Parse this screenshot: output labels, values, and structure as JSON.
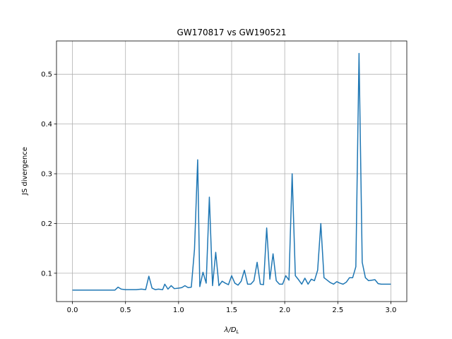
{
  "chart_data": {
    "type": "line",
    "title": "GW170817 vs GW190521",
    "xlabel_main": "λ",
    "xlabel_rest": "/D",
    "xlabel_sub": "L",
    "ylabel": "JS divergence",
    "xlim": [
      -0.15,
      3.15
    ],
    "ylim": [
      0.043,
      0.567
    ],
    "xticks": [
      0.0,
      0.5,
      1.0,
      1.5,
      2.0,
      2.5,
      3.0
    ],
    "xtick_labels": [
      "0.0",
      "0.5",
      "1.0",
      "1.5",
      "2.0",
      "2.5",
      "3.0"
    ],
    "yticks": [
      0.1,
      0.2,
      0.3,
      0.4,
      0.5
    ],
    "ytick_labels": [
      "0.1",
      "0.2",
      "0.3",
      "0.4",
      "0.5"
    ],
    "grid": true,
    "line_color": "#1f77b4",
    "series": [
      {
        "x": [
          0.0,
          0.05,
          0.1,
          0.15,
          0.2,
          0.25,
          0.3,
          0.35,
          0.4,
          0.43,
          0.46,
          0.5,
          0.55,
          0.6,
          0.65,
          0.69,
          0.72,
          0.75,
          0.78,
          0.81,
          0.85,
          0.87,
          0.9,
          0.93,
          0.96,
          1.0,
          1.03,
          1.06,
          1.09,
          1.12,
          1.15,
          1.18,
          1.2,
          1.23,
          1.26,
          1.29,
          1.32,
          1.35,
          1.38,
          1.41,
          1.44,
          1.47,
          1.5,
          1.53,
          1.56,
          1.59,
          1.62,
          1.65,
          1.68,
          1.71,
          1.74,
          1.77,
          1.8,
          1.83,
          1.86,
          1.89,
          1.92,
          1.95,
          1.98,
          2.01,
          2.04,
          2.07,
          2.1,
          2.13,
          2.16,
          2.19,
          2.22,
          2.25,
          2.28,
          2.31,
          2.34,
          2.37,
          2.4,
          2.43,
          2.46,
          2.49,
          2.52,
          2.55,
          2.58,
          2.61,
          2.64,
          2.67,
          2.7,
          2.73,
          2.76,
          2.79,
          2.82,
          2.85,
          2.88,
          2.91,
          2.94,
          2.97,
          3.0
        ],
        "y": [
          0.066,
          0.066,
          0.066,
          0.066,
          0.066,
          0.066,
          0.066,
          0.066,
          0.066,
          0.072,
          0.068,
          0.067,
          0.067,
          0.067,
          0.068,
          0.067,
          0.094,
          0.07,
          0.067,
          0.068,
          0.067,
          0.078,
          0.068,
          0.075,
          0.069,
          0.07,
          0.071,
          0.075,
          0.071,
          0.072,
          0.148,
          0.328,
          0.073,
          0.102,
          0.08,
          0.253,
          0.075,
          0.142,
          0.075,
          0.084,
          0.08,
          0.077,
          0.095,
          0.08,
          0.076,
          0.084,
          0.106,
          0.078,
          0.078,
          0.085,
          0.122,
          0.078,
          0.077,
          0.191,
          0.088,
          0.139,
          0.085,
          0.078,
          0.078,
          0.095,
          0.086,
          0.3,
          0.095,
          0.087,
          0.078,
          0.09,
          0.078,
          0.088,
          0.085,
          0.106,
          0.2,
          0.091,
          0.086,
          0.081,
          0.078,
          0.083,
          0.08,
          0.078,
          0.082,
          0.091,
          0.091,
          0.113,
          0.542,
          0.122,
          0.091,
          0.085,
          0.086,
          0.087,
          0.079,
          0.078,
          0.078,
          0.078,
          0.078
        ]
      }
    ]
  }
}
